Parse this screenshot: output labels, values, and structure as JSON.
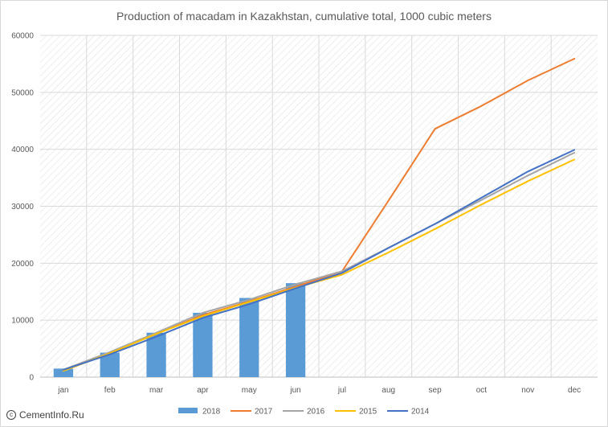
{
  "chart_data": {
    "type": "bar+line",
    "title": "Production of macadam in Kazakhstan, cumulative total, 1000 cubic meters",
    "categories": [
      "jan",
      "feb",
      "mar",
      "apr",
      "may",
      "jun",
      "jul",
      "aug",
      "sep",
      "oct",
      "nov",
      "dec"
    ],
    "ylim": [
      0,
      60000
    ],
    "yticks": [
      0,
      10000,
      20000,
      30000,
      40000,
      50000,
      60000
    ],
    "grid": true,
    "legend_position": "bottom",
    "bar_series": {
      "name": "2018",
      "color": "#5b9bd5",
      "values": [
        1500,
        4300,
        7800,
        11300,
        13900,
        16500,
        null,
        null,
        null,
        null,
        null,
        null
      ]
    },
    "line_series": [
      {
        "name": "2017",
        "color": "#ed7d31",
        "values": [
          1300,
          4300,
          7600,
          10900,
          13300,
          15900,
          18600,
          31000,
          43600,
          47600,
          52100,
          55900
        ]
      },
      {
        "name": "2016",
        "color": "#a5a5a5",
        "values": [
          1300,
          4400,
          7800,
          11300,
          13600,
          16300,
          18600,
          22700,
          26900,
          31100,
          35400,
          39400
        ]
      },
      {
        "name": "2015",
        "color": "#ffc000",
        "values": [
          1100,
          4200,
          7600,
          10700,
          13200,
          15700,
          18000,
          21900,
          26000,
          30300,
          34400,
          38200
        ]
      },
      {
        "name": "2014",
        "color": "#4472c4",
        "values": [
          1300,
          4000,
          7100,
          10400,
          12800,
          15600,
          18300,
          22700,
          26900,
          31500,
          36100,
          39900
        ]
      }
    ]
  },
  "watermark": {
    "icon": "copyright-icon",
    "text": "CementInfo.Ru"
  }
}
